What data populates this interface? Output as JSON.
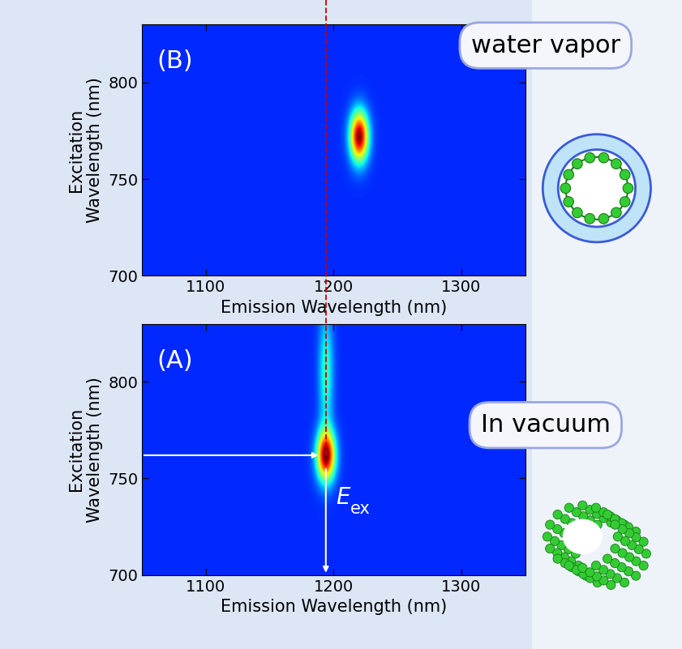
{
  "chart_data": [
    {
      "type": "heatmap",
      "panel_label": "(B)",
      "callout": "water vapor",
      "xlabel": "Emission Wavelength (nm)",
      "ylabel": "Excitation\nWavelength (nm)",
      "xlim": [
        1050,
        1350
      ],
      "ylim": [
        700,
        830
      ],
      "xticks": [
        1100,
        1200,
        1300
      ],
      "yticks": [
        700,
        750,
        800
      ],
      "peaks": [
        {
          "x": 1220,
          "y": 772,
          "x_width": 5,
          "y_width": 9,
          "intensity": 1
        }
      ]
    },
    {
      "type": "heatmap",
      "panel_label": "(A)",
      "callout": "In vacuum",
      "xlabel": "Emission Wavelength (nm)",
      "ylabel": "Excitation\nWavelength (nm)",
      "xlim": [
        1050,
        1350
      ],
      "ylim": [
        700,
        830
      ],
      "xticks": [
        1100,
        1200,
        1300
      ],
      "yticks": [
        700,
        750,
        800
      ],
      "peaks": [
        {
          "x": 1194,
          "y": 762,
          "x_width": 5,
          "y_width": 9,
          "intensity": 1
        },
        {
          "x": 1194,
          "y": 805,
          "x_width": 4,
          "y_width": 22,
          "intensity": 0.3
        }
      ],
      "annotation": {
        "text": "E",
        "subscript": "ex",
        "x": 1194,
        "y": 762
      }
    }
  ],
  "reference_line": {
    "x": 1194,
    "color": "#cc0000",
    "line_style": "dashed"
  }
}
